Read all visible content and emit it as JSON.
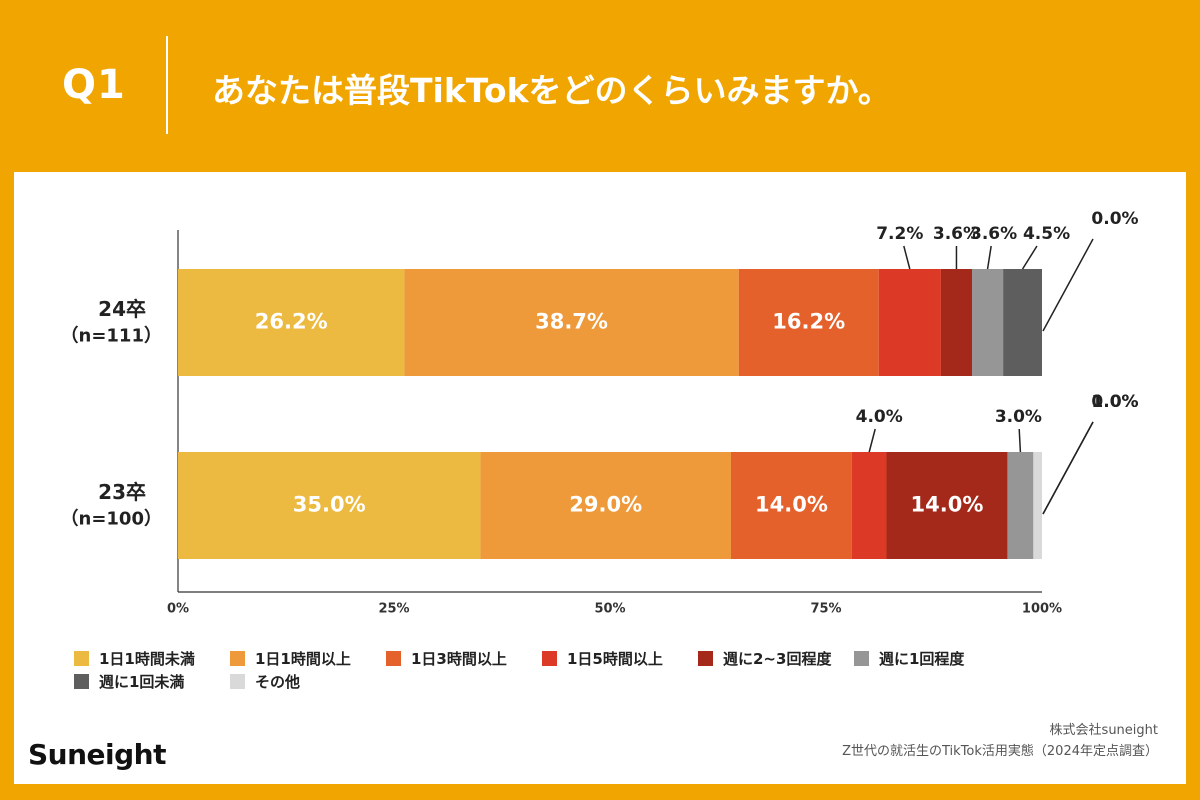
{
  "header": {
    "question": "Q1",
    "title": "あなたは普段TikTokをどのくらいみますか。"
  },
  "footer": {
    "brand": "Suneight",
    "company": "株式会社suneight",
    "source": "Z世代の就活生のTikTok活用実態（2024年定点調査）"
  },
  "chart_data": {
    "type": "bar",
    "orientation": "horizontal",
    "stacked": true,
    "categories": [
      {
        "name": "24卒",
        "n": "（n=111）"
      },
      {
        "name": "23卒",
        "n": "（n=100）"
      }
    ],
    "series": [
      {
        "name": "1日1時間未満",
        "color": "#EDBA41",
        "values": [
          26.2,
          35.0
        ],
        "labels": [
          "26.2%",
          "35.0%"
        ]
      },
      {
        "name": "1日1時間以上",
        "color": "#EE9A3A",
        "values": [
          38.7,
          29.0
        ],
        "labels": [
          "38.7%",
          "29.0%"
        ]
      },
      {
        "name": "1日3時間以上",
        "color": "#E5612C",
        "values": [
          16.2,
          14.0
        ],
        "labels": [
          "16.2%",
          "14.0%"
        ]
      },
      {
        "name": "1日5時間以上",
        "color": "#DC3A26",
        "values": [
          7.2,
          4.0
        ],
        "labels": [
          "7.2%",
          "4.0%"
        ]
      },
      {
        "name": "週に2~3回程度",
        "color": "#A4291A",
        "values": [
          3.6,
          14.0
        ],
        "labels": [
          "3.6%",
          "14.0%"
        ]
      },
      {
        "name": "週に1回程度",
        "color": "#969696",
        "values": [
          3.6,
          3.0
        ],
        "labels": [
          "3.6%",
          "3.0%"
        ]
      },
      {
        "name": "週に1回未満",
        "color": "#5E5E5E",
        "values": [
          4.5,
          0.0
        ],
        "labels": [
          "4.5%",
          "0.0%"
        ]
      },
      {
        "name": "その他",
        "color": "#D9D9D9",
        "values": [
          0.0,
          1.0
        ],
        "labels": [
          "0.0%",
          "1.0%"
        ]
      }
    ],
    "x_ticks": [
      "0%",
      "25%",
      "50%",
      "75%",
      "100%"
    ],
    "xlim": [
      0,
      100
    ],
    "legend": "bottom",
    "grid": false
  }
}
